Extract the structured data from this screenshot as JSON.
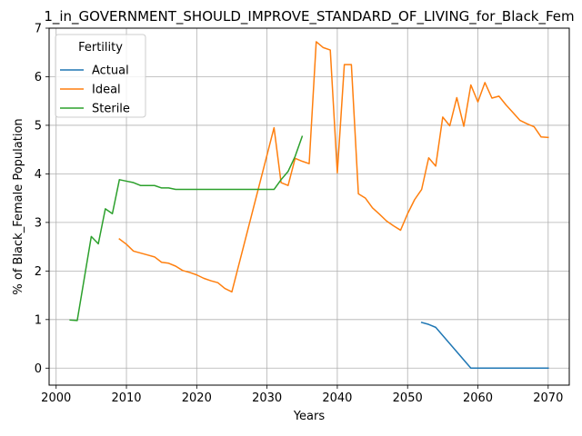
{
  "chart_data": {
    "type": "line",
    "title": "1_in_GOVERNMENT_SHOULD_IMPROVE_STANDARD_OF_LIVING_for_Black_Fem",
    "xlabel": "Years",
    "ylabel": "% of Black_Female Population",
    "xlim": [
      1999,
      2073
    ],
    "ylim": [
      -0.35,
      7.0
    ],
    "xticks": [
      2000,
      2010,
      2020,
      2030,
      2040,
      2050,
      2060,
      2070
    ],
    "yticks": [
      0,
      1,
      2,
      3,
      4,
      5,
      6,
      7
    ],
    "grid": true,
    "legend": {
      "title": "Fertility",
      "placement": "top-left"
    },
    "series": [
      {
        "name": "Actual",
        "color": "#1f77b4",
        "points": [
          [
            2052,
            0.94
          ],
          [
            2053,
            0.9
          ],
          [
            2054,
            0.84
          ],
          [
            2059,
            0.0
          ],
          [
            2070,
            0.0
          ]
        ]
      },
      {
        "name": "Ideal",
        "color": "#ff7f0e",
        "points": [
          [
            2009,
            2.66
          ],
          [
            2010,
            2.55
          ],
          [
            2011,
            2.41
          ],
          [
            2012,
            2.37
          ],
          [
            2013,
            2.33
          ],
          [
            2014,
            2.29
          ],
          [
            2015,
            2.18
          ],
          [
            2016,
            2.16
          ],
          [
            2017,
            2.1
          ],
          [
            2018,
            2.01
          ],
          [
            2019,
            1.97
          ],
          [
            2020,
            1.92
          ],
          [
            2021,
            1.85
          ],
          [
            2022,
            1.8
          ],
          [
            2023,
            1.76
          ],
          [
            2024,
            1.64
          ],
          [
            2025,
            1.57
          ],
          [
            2031,
            4.95
          ],
          [
            2032,
            3.82
          ],
          [
            2033,
            3.76
          ],
          [
            2034,
            4.32
          ],
          [
            2035,
            4.26
          ],
          [
            2036,
            4.21
          ],
          [
            2037,
            6.72
          ],
          [
            2038,
            6.6
          ],
          [
            2039,
            6.55
          ],
          [
            2040,
            4.02
          ],
          [
            2041,
            6.25
          ],
          [
            2042,
            6.25
          ],
          [
            2043,
            3.59
          ],
          [
            2044,
            3.5
          ],
          [
            2045,
            3.3
          ],
          [
            2046,
            3.17
          ],
          [
            2047,
            3.03
          ],
          [
            2048,
            2.93
          ],
          [
            2049,
            2.84
          ],
          [
            2050,
            3.18
          ],
          [
            2051,
            3.47
          ],
          [
            2052,
            3.68
          ],
          [
            2053,
            4.33
          ],
          [
            2054,
            4.16
          ],
          [
            2055,
            5.17
          ],
          [
            2056,
            4.99
          ],
          [
            2057,
            5.57
          ],
          [
            2058,
            4.98
          ],
          [
            2059,
            5.83
          ],
          [
            2060,
            5.48
          ],
          [
            2061,
            5.88
          ],
          [
            2062,
            5.56
          ],
          [
            2063,
            5.6
          ],
          [
            2064,
            5.42
          ],
          [
            2065,
            5.26
          ],
          [
            2066,
            5.1
          ],
          [
            2067,
            5.03
          ],
          [
            2068,
            4.97
          ],
          [
            2069,
            4.76
          ],
          [
            2070,
            4.75
          ]
        ]
      },
      {
        "name": "Sterile",
        "color": "#2ca02c",
        "points": [
          [
            2002,
            0.99
          ],
          [
            2003,
            0.98
          ],
          [
            2005,
            2.71
          ],
          [
            2006,
            2.56
          ],
          [
            2007,
            3.28
          ],
          [
            2008,
            3.18
          ],
          [
            2009,
            3.88
          ],
          [
            2010,
            3.85
          ],
          [
            2011,
            3.82
          ],
          [
            2012,
            3.76
          ],
          [
            2013,
            3.76
          ],
          [
            2014,
            3.76
          ],
          [
            2015,
            3.71
          ],
          [
            2016,
            3.71
          ],
          [
            2017,
            3.68
          ],
          [
            2031,
            3.68
          ],
          [
            2032,
            3.88
          ],
          [
            2033,
            4.05
          ],
          [
            2034,
            4.36
          ],
          [
            2035,
            4.77
          ]
        ]
      }
    ]
  }
}
